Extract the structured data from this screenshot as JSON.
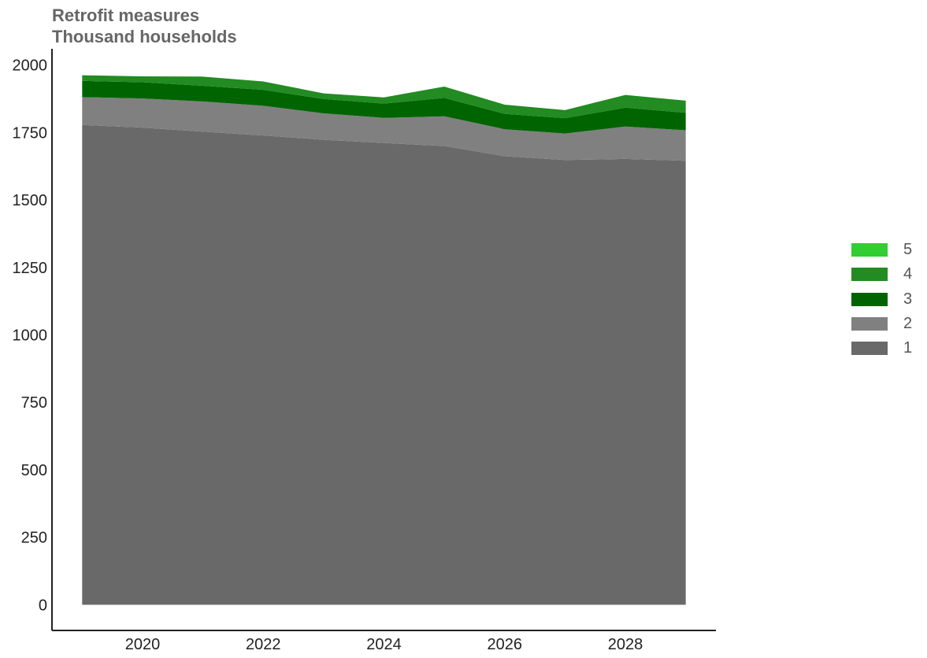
{
  "chart_data": {
    "type": "area",
    "stacked": true,
    "title": "Retrofit measures",
    "subtitle": "Thousand households",
    "xlabel": "",
    "ylabel": "",
    "x": [
      2019,
      2020,
      2021,
      2022,
      2023,
      2024,
      2025,
      2026,
      2027,
      2028,
      2029
    ],
    "xlim": [
      2018.5,
      2029.5
    ],
    "ylim": [
      -95,
      2060
    ],
    "xticks": [
      2020,
      2022,
      2024,
      2026,
      2028
    ],
    "yticks": [
      0,
      250,
      500,
      750,
      1000,
      1250,
      1500,
      1750,
      2000
    ],
    "legend_position": "right",
    "legend_order": [
      "5",
      "4",
      "3",
      "2",
      "1"
    ],
    "series": [
      {
        "name": "1",
        "color": "#696969",
        "values": [
          1778,
          1768,
          1753,
          1739,
          1723,
          1711,
          1700,
          1662,
          1648,
          1652,
          1645
        ]
      },
      {
        "name": "2",
        "color": "#808080",
        "values": [
          103,
          108,
          112,
          110,
          98,
          93,
          110,
          100,
          98,
          120,
          113
        ]
      },
      {
        "name": "3",
        "color": "#006400",
        "values": [
          60,
          60,
          58,
          59,
          53,
          53,
          68,
          57,
          57,
          70,
          65
        ]
      },
      {
        "name": "4",
        "color": "#228b22",
        "values": [
          21,
          22,
          34,
          31,
          21,
          23,
          42,
          34,
          30,
          47,
          45
        ]
      },
      {
        "name": "5",
        "color": "#32cd32",
        "values": [
          0,
          0,
          0,
          0,
          0,
          0,
          0,
          0,
          0,
          0,
          0
        ]
      }
    ]
  }
}
